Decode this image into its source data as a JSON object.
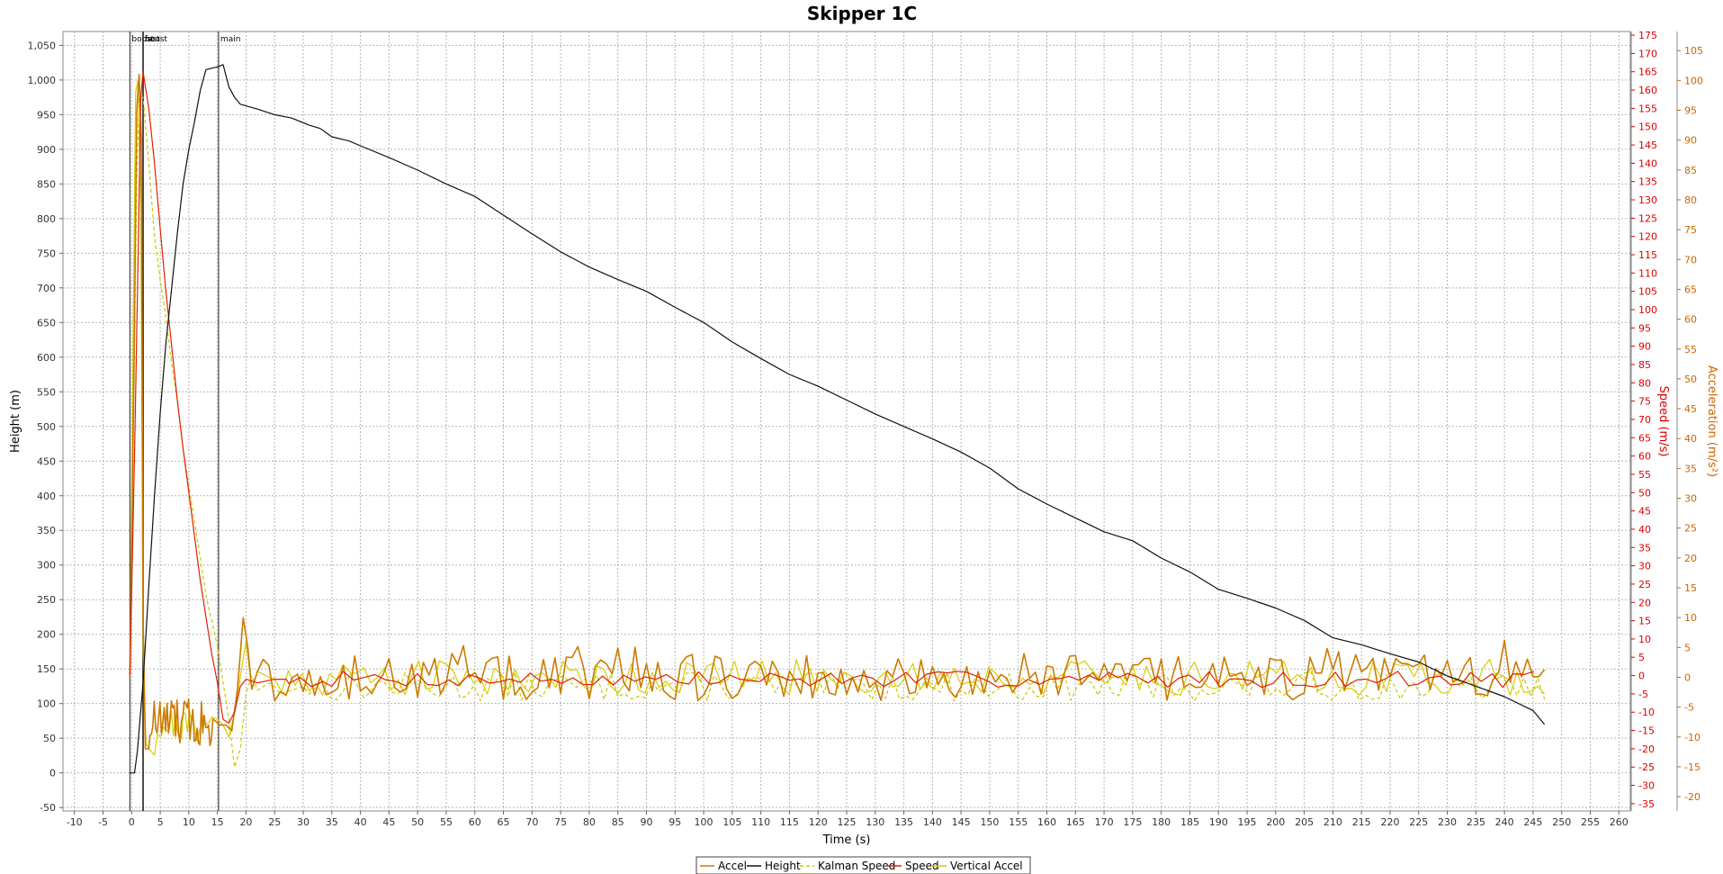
{
  "chart_data": {
    "type": "line",
    "title": "Skipper 1C",
    "xlabel": "Time (s)",
    "grid": true,
    "legend_position": "bottom",
    "x_axis": {
      "min": -12,
      "max": 262,
      "step": 5,
      "tick_min": -10,
      "tick_max": 260
    },
    "axes": {
      "left": {
        "label": "Height (m)",
        "min": -55,
        "max": 1070,
        "step": 50,
        "tick_min": -50,
        "tick_max": 1050,
        "color": "#000000",
        "thousands_sep": true
      },
      "right1": {
        "label": "Speed (m/s)",
        "min": -37,
        "max": 176,
        "step": 5,
        "tick_min": -35,
        "tick_max": 175,
        "color": "#dd0000"
      },
      "right2": {
        "label": "Acceleration (m/s²)",
        "min": -22.4,
        "max": 108.2,
        "step": 5,
        "tick_min": -20,
        "tick_max": 105,
        "color": "#cc6600"
      }
    },
    "events": [
      {
        "label": "boost",
        "x": -0.3
      },
      {
        "label": "fast",
        "x": 2.0
      },
      {
        "label": "boost",
        "x": 2.0
      },
      {
        "label": "main",
        "x": 15.2
      }
    ],
    "series": [
      {
        "name": "Accel",
        "axis": "right2",
        "color": "#cc7a00",
        "dash": "",
        "width": 1.6,
        "noise": "accel"
      },
      {
        "name": "Height",
        "axis": "left",
        "color": "#111111",
        "dash": "",
        "width": 1.2,
        "points": [
          [
            -0.3,
            0
          ],
          [
            0.5,
            0
          ],
          [
            1,
            30
          ],
          [
            2,
            130
          ],
          [
            3,
            270
          ],
          [
            4,
            400
          ],
          [
            5,
            520
          ],
          [
            6,
            620
          ],
          [
            7,
            700
          ],
          [
            8,
            780
          ],
          [
            9,
            850
          ],
          [
            10,
            900
          ],
          [
            11,
            940
          ],
          [
            12,
            985
          ],
          [
            13,
            1015
          ],
          [
            14,
            1017
          ],
          [
            15,
            1019
          ],
          [
            16,
            1022
          ],
          [
            17,
            990
          ],
          [
            18,
            975
          ],
          [
            19,
            965
          ],
          [
            22,
            958
          ],
          [
            25,
            950
          ],
          [
            28,
            945
          ],
          [
            31,
            935
          ],
          [
            33,
            930
          ],
          [
            35,
            918
          ],
          [
            38,
            912
          ],
          [
            40,
            905
          ],
          [
            45,
            888
          ],
          [
            50,
            870
          ],
          [
            55,
            850
          ],
          [
            60,
            832
          ],
          [
            65,
            805
          ],
          [
            70,
            778
          ],
          [
            75,
            752
          ],
          [
            80,
            730
          ],
          [
            85,
            712
          ],
          [
            90,
            695
          ],
          [
            95,
            672
          ],
          [
            100,
            650
          ],
          [
            105,
            622
          ],
          [
            110,
            598
          ],
          [
            115,
            575
          ],
          [
            120,
            558
          ],
          [
            125,
            538
          ],
          [
            130,
            518
          ],
          [
            135,
            500
          ],
          [
            140,
            482
          ],
          [
            145,
            463
          ],
          [
            150,
            440
          ],
          [
            155,
            410
          ],
          [
            160,
            388
          ],
          [
            165,
            368
          ],
          [
            170,
            348
          ],
          [
            175,
            335
          ],
          [
            180,
            310
          ],
          [
            185,
            290
          ],
          [
            190,
            265
          ],
          [
            195,
            252
          ],
          [
            200,
            238
          ],
          [
            205,
            220
          ],
          [
            210,
            195
          ],
          [
            215,
            185
          ],
          [
            220,
            172
          ],
          [
            225,
            160
          ],
          [
            230,
            140
          ],
          [
            235,
            125
          ],
          [
            240,
            110
          ],
          [
            245,
            90
          ],
          [
            247,
            70
          ]
        ]
      },
      {
        "name": "Kalman Speed",
        "axis": "right1",
        "color": "#c8c800",
        "dash": "4,3",
        "width": 1.2,
        "points": [
          [
            -0.3,
            0
          ],
          [
            0.3,
            70
          ],
          [
            0.9,
            135
          ],
          [
            1.3,
            158
          ],
          [
            2,
            158
          ],
          [
            3,
            140
          ],
          [
            4,
            120
          ],
          [
            5,
            108
          ],
          [
            6,
            98
          ],
          [
            7,
            85
          ],
          [
            8,
            75
          ],
          [
            9,
            62
          ],
          [
            10,
            52
          ],
          [
            11,
            42
          ],
          [
            12,
            32
          ],
          [
            13,
            22
          ],
          [
            14,
            15
          ],
          [
            15,
            8
          ],
          [
            16,
            -2
          ],
          [
            17,
            -12
          ],
          [
            18,
            -25
          ],
          [
            19,
            -20
          ],
          [
            20,
            -5
          ],
          [
            21,
            0
          ],
          [
            22,
            -4
          ],
          [
            23,
            -3
          ],
          [
            24,
            -2
          ],
          [
            25,
            -3
          ],
          [
            26,
            -5
          ],
          [
            28,
            -4
          ],
          [
            30,
            -3
          ]
        ],
        "noise": "kalman"
      },
      {
        "name": "Speed",
        "axis": "right1",
        "color": "#dd2200",
        "dash": "",
        "width": 1.2,
        "points": [
          [
            -0.3,
            0
          ],
          [
            0.5,
            60
          ],
          [
            1.2,
            120
          ],
          [
            1.6,
            158
          ],
          [
            2,
            165
          ],
          [
            3,
            155
          ],
          [
            4,
            140
          ],
          [
            5,
            122
          ],
          [
            6,
            105
          ],
          [
            7,
            90
          ],
          [
            8,
            75
          ],
          [
            9,
            62
          ],
          [
            10,
            50
          ],
          [
            11,
            38
          ],
          [
            12,
            26
          ],
          [
            13,
            16
          ],
          [
            14,
            6
          ],
          [
            15,
            -2
          ],
          [
            16,
            -12
          ],
          [
            17,
            -13
          ],
          [
            18,
            -10
          ],
          [
            19,
            -3
          ],
          [
            20,
            -1
          ],
          [
            22,
            -2
          ],
          [
            25,
            -1
          ],
          [
            27,
            -1
          ]
        ],
        "noise": "speed"
      },
      {
        "name": "Vertical Accel",
        "axis": "right2",
        "color": "#d8cc00",
        "dash": "",
        "width": 1.2,
        "noise": "vaccel"
      }
    ]
  }
}
